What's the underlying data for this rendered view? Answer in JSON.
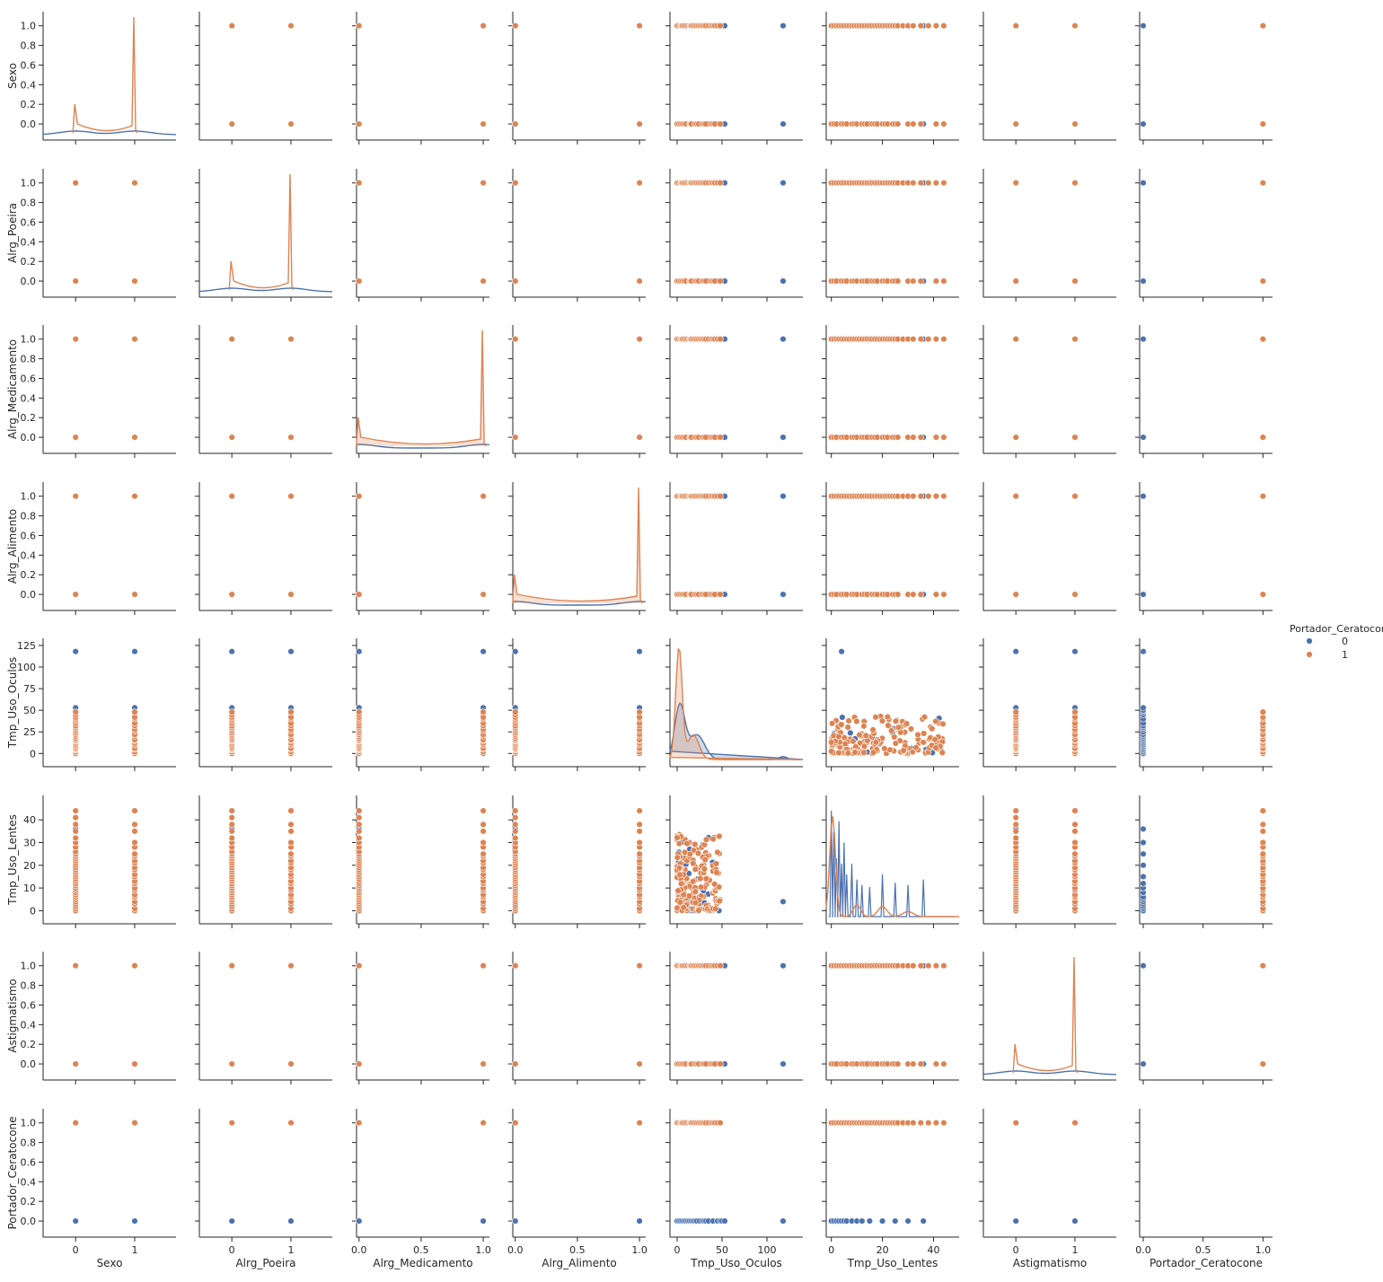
{
  "chart_data": {
    "type": "scatter",
    "variables": [
      "Sexo",
      "Alrg_Poeira",
      "Alrg_Medicamento",
      "Alrg_Alimento",
      "Tmp_Uso_Oculos",
      "Tmp_Uso_Lentes",
      "Astigmatismo",
      "Portador_Ceratocone"
    ],
    "hue": {
      "title": "Portador_Ceratocone",
      "levels": [
        "0",
        "1"
      ],
      "colors": {
        "0": "#4c72b0",
        "1": "#dd8452"
      }
    },
    "axes": {
      "Sexo": {
        "lim": [
          -0.55,
          1.7
        ],
        "ticks": [
          0,
          1
        ],
        "tick_labels": [
          "0",
          "1"
        ]
      },
      "Alrg_Poeira": {
        "lim": [
          -0.55,
          1.7
        ],
        "ticks": [
          0,
          1
        ],
        "tick_labels": [
          "0",
          "1"
        ]
      },
      "Alrg_Medicamento": {
        "lim": [
          -0.02,
          1.05
        ],
        "ticks": [
          0,
          0.5,
          1
        ],
        "tick_labels": [
          "0.0",
          "0.5",
          "1.0"
        ]
      },
      "Alrg_Alimento": {
        "lim": [
          -0.02,
          1.05
        ],
        "ticks": [
          0,
          0.5,
          1
        ],
        "tick_labels": [
          "0.0",
          "0.5",
          "1.0"
        ]
      },
      "Tmp_Uso_Oculos": {
        "lim": [
          -8,
          140
        ],
        "ticks": [
          0,
          50,
          100
        ],
        "tick_labels": [
          "0",
          "50",
          "100"
        ],
        "ylim": [
          -8,
          126
        ],
        "yticks": [
          0,
          25,
          50,
          75,
          100,
          125
        ],
        "ytick_labels": [
          "0",
          "25",
          "50",
          "75",
          "100",
          "125"
        ]
      },
      "Tmp_Uso_Lentes": {
        "lim": [
          -2,
          50
        ],
        "ticks": [
          0,
          20,
          40
        ],
        "tick_labels": [
          "0",
          "20",
          "40"
        ],
        "ylim": [
          -3,
          48
        ],
        "yticks": [
          0,
          10,
          20,
          30,
          40
        ],
        "ytick_labels": [
          "0",
          "10",
          "20",
          "30",
          "40"
        ]
      },
      "Astigmatismo": {
        "lim": [
          -0.55,
          1.7
        ],
        "ticks": [
          0,
          1
        ],
        "tick_labels": [
          "0",
          "1"
        ]
      },
      "Portador_Ceratocone": {
        "lim": [
          -0.03,
          1.08
        ],
        "ticks": [
          0,
          0.5,
          1
        ],
        "tick_labels": [
          "0.0",
          "0.5",
          "1.0"
        ]
      }
    },
    "binary_ylim": [
      -0.1,
      1.08
    ],
    "binary_yticks": [
      0,
      0.2,
      0.4,
      0.6,
      0.8,
      1.0
    ],
    "binary_ytick_labels": [
      "0.0",
      "0.2",
      "0.4",
      "0.6",
      "0.8",
      "1.0"
    ],
    "series_values": {
      "Tmp_Uso_Oculos": {
        "0": [
          0,
          2,
          4,
          6,
          8,
          10,
          12,
          14,
          16,
          18,
          20,
          22,
          25,
          28,
          30,
          32,
          35,
          40,
          45,
          48,
          50,
          53,
          118
        ],
        "1": [
          0,
          2,
          4,
          5,
          6,
          8,
          10,
          12,
          14,
          15,
          16,
          18,
          20,
          22,
          24,
          26,
          28,
          30,
          32,
          35,
          38,
          40,
          42,
          45,
          48
        ]
      },
      "Tmp_Uso_Lentes": {
        "0": [
          0,
          1,
          2,
          3,
          4,
          5,
          6,
          8,
          10,
          12,
          15,
          20,
          25,
          30,
          36
        ],
        "1": [
          0,
          1,
          2,
          3,
          4,
          5,
          6,
          7,
          8,
          9,
          10,
          11,
          12,
          13,
          14,
          15,
          16,
          17,
          18,
          19,
          20,
          21,
          22,
          23,
          24,
          25,
          26,
          28,
          30,
          32,
          35,
          38,
          41,
          44
        ]
      }
    }
  }
}
